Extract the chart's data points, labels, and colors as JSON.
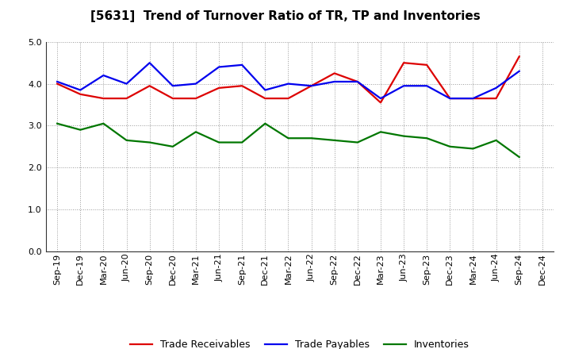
{
  "title": "[5631]  Trend of Turnover Ratio of TR, TP and Inventories",
  "labels": [
    "Sep-19",
    "Dec-19",
    "Mar-20",
    "Jun-20",
    "Sep-20",
    "Dec-20",
    "Mar-21",
    "Jun-21",
    "Sep-21",
    "Dec-21",
    "Mar-22",
    "Jun-22",
    "Sep-22",
    "Dec-22",
    "Mar-23",
    "Jun-23",
    "Sep-23",
    "Dec-23",
    "Mar-24",
    "Jun-24",
    "Sep-24",
    "Dec-24"
  ],
  "trade_receivables": [
    4.0,
    3.75,
    3.65,
    3.65,
    3.95,
    3.65,
    3.65,
    3.9,
    3.95,
    3.65,
    3.65,
    3.95,
    4.25,
    4.05,
    3.55,
    4.5,
    4.45,
    3.65,
    3.65,
    3.65,
    4.65,
    null
  ],
  "trade_payables": [
    4.05,
    3.85,
    4.2,
    4.0,
    4.5,
    3.95,
    4.0,
    4.4,
    4.45,
    3.85,
    4.0,
    3.95,
    4.05,
    4.05,
    3.65,
    3.95,
    3.95,
    3.65,
    3.65,
    3.9,
    4.3,
    null
  ],
  "inventories": [
    3.05,
    2.9,
    3.05,
    2.65,
    2.6,
    2.5,
    2.85,
    2.6,
    2.6,
    3.05,
    2.7,
    2.7,
    2.65,
    2.6,
    2.85,
    2.75,
    2.7,
    2.5,
    2.45,
    2.65,
    2.25,
    null
  ],
  "tr_color": "#dd0000",
  "tp_color": "#0000ee",
  "inv_color": "#007700",
  "ylim": [
    0.0,
    5.0
  ],
  "yticks": [
    0.0,
    1.0,
    2.0,
    3.0,
    4.0,
    5.0
  ],
  "background_color": "#ffffff",
  "grid_color": "#999999",
  "legend_labels": [
    "Trade Receivables",
    "Trade Payables",
    "Inventories"
  ],
  "title_fontsize": 11,
  "tick_fontsize": 8,
  "legend_fontsize": 9
}
